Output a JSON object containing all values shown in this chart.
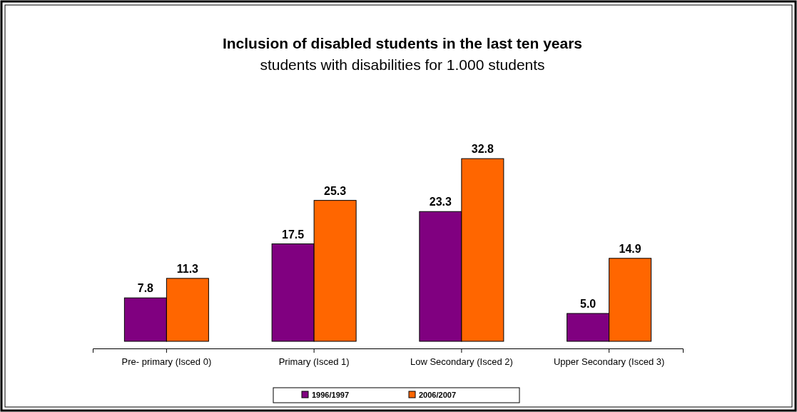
{
  "chart_data": {
    "type": "bar",
    "title": "Inclusion of disabled students in the last ten years",
    "subtitle": "students with disabilities for 1.000 students",
    "categories": [
      "Pre- primary (Isced 0)",
      "Primary (Isced 1)",
      "Low Secondary (Isced 2)",
      "Upper Secondary (Isced 3)"
    ],
    "series": [
      {
        "name": "1996/1997",
        "color": "#800080",
        "values": [
          7.8,
          17.5,
          23.3,
          5.0
        ],
        "value_labels": [
          "7.8",
          "17.5",
          "23.3",
          "5.0"
        ]
      },
      {
        "name": "2006/2007",
        "color": "#ff6600",
        "values": [
          11.3,
          25.3,
          32.8,
          14.9
        ],
        "value_labels": [
          "11.3",
          "25.3",
          "32.8",
          "14.9"
        ]
      }
    ],
    "legend": "bottom"
  }
}
